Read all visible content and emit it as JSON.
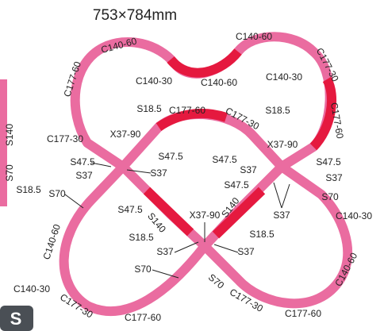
{
  "title": "753×784mm",
  "labels": [
    "C140-60",
    "C140-30",
    "C140-60",
    "C140-60",
    "C140-30",
    "C177-30",
    "C177-60",
    "S18.5",
    "C177-60",
    "C177-30",
    "S18.5",
    "C177-60",
    "C177-30",
    "X37-90",
    "X37-90",
    "S47.5",
    "S47.5",
    "S37",
    "S37",
    "S47.5",
    "S37",
    "S47.5",
    "S37",
    "S47.5",
    "S70",
    "S70",
    "S37",
    "C140-30",
    "S47.5",
    "S140",
    "S140",
    "X37-90",
    "S18.5",
    "S18.5",
    "S37",
    "S37",
    "C140-60",
    "S70",
    "C140-60",
    "S70",
    "C140-30",
    "C177-30",
    "C177-60",
    "C177-30",
    "C177-60",
    "S140",
    "S70",
    "S18.5",
    "S"
  ]
}
